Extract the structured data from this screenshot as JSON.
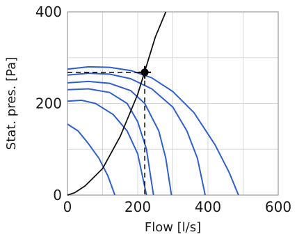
{
  "chart_data": {
    "type": "line",
    "xlabel": "Flow [l/s]",
    "ylabel": "Stat. pres. [Pa]",
    "xlim": [
      0,
      600
    ],
    "ylim": [
      0,
      400
    ],
    "x_ticks": [
      0,
      200,
      400,
      600
    ],
    "y_ticks": [
      0,
      200,
      400
    ],
    "grid": true,
    "colors": {
      "fan": "#2f5fd0",
      "system": "#111111",
      "grid": "#d9d9d9",
      "frame": "#9a9a9a",
      "guide": "#111111"
    },
    "series": [
      {
        "x": [
          0,
          60,
          120,
          180,
          240,
          300,
          360,
          420,
          460,
          487
        ],
        "y": [
          275,
          280,
          279,
          272,
          256,
          226,
          180,
          110,
          50,
          0
        ]
      },
      {
        "x": [
          0,
          60,
          120,
          180,
          240,
          300,
          340,
          370,
          392
        ],
        "y": [
          262,
          266,
          264,
          254,
          232,
          192,
          140,
          80,
          0
        ]
      },
      {
        "x": [
          0,
          60,
          120,
          180,
          220,
          260,
          280,
          296
        ],
        "y": [
          245,
          248,
          244,
          228,
          200,
          140,
          80,
          0
        ]
      },
      {
        "x": [
          0,
          60,
          120,
          170,
          200,
          225,
          245
        ],
        "y": [
          230,
          232,
          224,
          200,
          160,
          100,
          0
        ]
      },
      {
        "x": [
          0,
          40,
          80,
          130,
          170,
          200,
          225
        ],
        "y": [
          205,
          207,
          200,
          176,
          140,
          90,
          0
        ]
      },
      {
        "x": [
          0,
          30,
          60,
          90,
          115,
          135
        ],
        "y": [
          155,
          140,
          112,
          80,
          42,
          0
        ]
      },
      {
        "x": [
          0,
          20,
          50,
          100,
          150,
          200,
          250,
          280
        ],
        "y": [
          0,
          5,
          20,
          58,
          128,
          220,
          345,
          400
        ]
      }
    ],
    "operating_point": {
      "x": 220,
      "y": 268
    }
  }
}
